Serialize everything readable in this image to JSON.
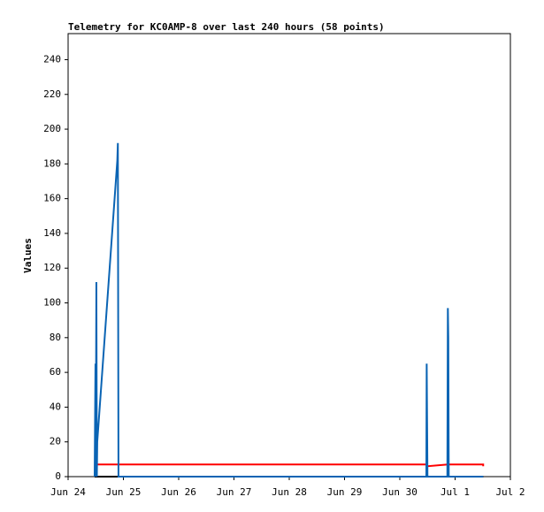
{
  "chart_data": {
    "type": "line",
    "title": "Telemetry for KC0AMP-8 over last 240 hours (58 points)",
    "y_label": "Values",
    "xlim": [
      0,
      8
    ],
    "xticks": [
      {
        "value": 0,
        "label": "Jun 24"
      },
      {
        "value": 1,
        "label": "Jun 25"
      },
      {
        "value": 2,
        "label": "Jun 26"
      },
      {
        "value": 3,
        "label": "Jun 27"
      },
      {
        "value": 4,
        "label": "Jun 28"
      },
      {
        "value": 5,
        "label": "Jun 29"
      },
      {
        "value": 6,
        "label": "Jun 30"
      },
      {
        "value": 7,
        "label": "Jul 1"
      },
      {
        "value": 8,
        "label": "Jul 2"
      }
    ],
    "ylim": [
      0,
      255
    ],
    "yticks": [
      0,
      20,
      40,
      60,
      80,
      100,
      120,
      140,
      160,
      180,
      200,
      220,
      240
    ],
    "series": [
      {
        "color": "#ff0000",
        "x": [
          0.511,
          6.486,
          6.5,
          6.87,
          7.508,
          7.508
        ],
        "values": [
          7,
          7,
          6,
          7,
          7,
          6
        ]
      },
      {
        "color": "#000000",
        "x": [
          0.48,
          7.508
        ],
        "values": [
          0,
          0
        ]
      },
      {
        "color": "#0a64b4",
        "x": [
          0.48,
          0.495,
          0.5,
          0.511,
          0.52,
          0.527,
          0.89,
          0.9,
          0.911,
          6.48,
          6.486,
          6.5,
          6.86,
          6.869,
          6.877,
          6.885,
          7.508
        ],
        "values": [
          0,
          65,
          0,
          112,
          0,
          20,
          182,
          192,
          0,
          0,
          65,
          0,
          0,
          97,
          80,
          0,
          0
        ]
      }
    ]
  }
}
